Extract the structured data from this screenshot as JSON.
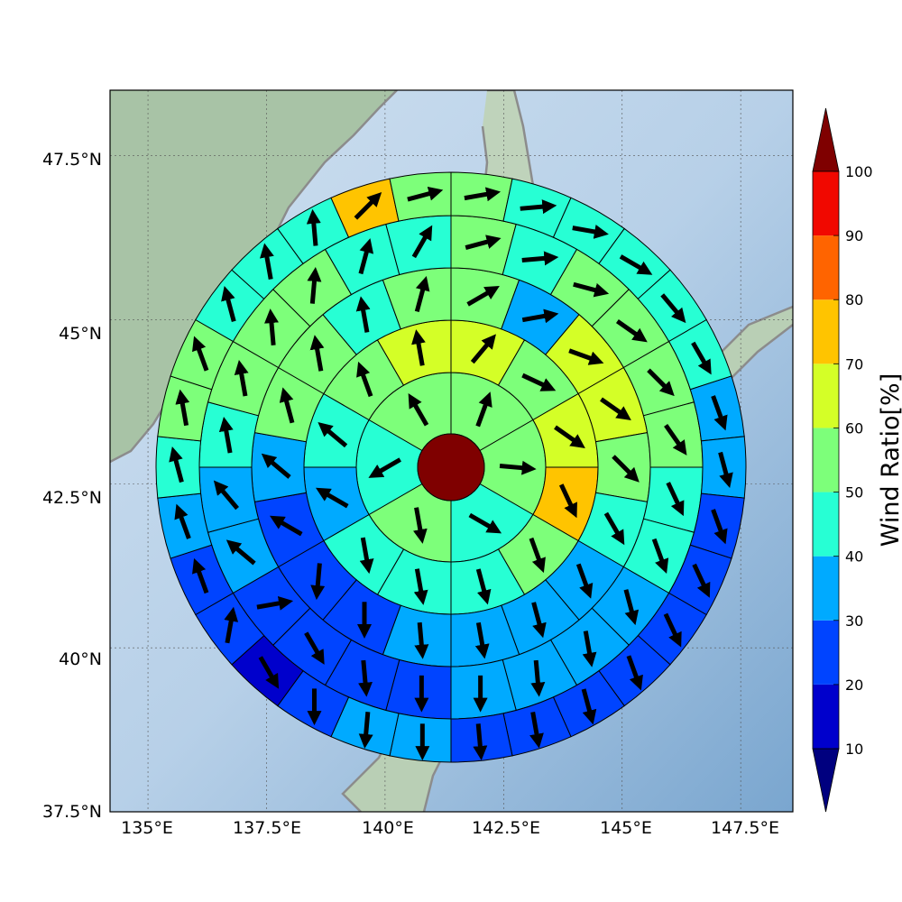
{
  "map": {
    "lon_ticks": [
      "135°E",
      "137.5°E",
      "140°E",
      "142.5°E",
      "145°E",
      "147.5°E"
    ],
    "lat_ticks": [
      "47.5°N",
      "45°N",
      "42.5°N",
      "40°N",
      "37.5°N"
    ],
    "center": {
      "lon": 141.4,
      "lat": 43.1
    },
    "extent": {
      "lon": [
        134.2,
        148.6
      ],
      "lat": [
        37.5,
        48.5
      ]
    },
    "colors": {
      "land": "#9fc0a4",
      "sea": "#aecbe6",
      "coast": "#8c8c8c",
      "center_disc": "#7f0000"
    },
    "rings": [
      {
        "sectors": 6,
        "ratio": [
          55,
          55,
          45,
          50,
          45,
          55
        ],
        "wind_dir": [
          20,
          95,
          120,
          170,
          240,
          330
        ]
      },
      {
        "sectors": 12,
        "ratio": [
          65,
          55,
          60,
          75,
          55,
          45,
          45,
          45,
          35,
          45,
          55,
          65
        ],
        "wind_dir": [
          40,
          115,
          125,
          155,
          160,
          165,
          170,
          170,
          300,
          310,
          340,
          350
        ]
      },
      {
        "sectors": 18,
        "ratio": [
          55,
          35,
          65,
          65,
          55,
          45,
          35,
          35,
          35,
          35,
          25,
          25,
          25,
          35,
          55,
          55,
          45,
          55
        ],
        "wind_dir": [
          60,
          80,
          110,
          125,
          135,
          150,
          160,
          165,
          170,
          175,
          180,
          185,
          300,
          310,
          345,
          350,
          350,
          15
        ]
      },
      {
        "sectors": 24,
        "ratio": [
          55,
          45,
          55,
          55,
          55,
          55,
          45,
          45,
          35,
          35,
          35,
          35,
          25,
          25,
          25,
          25,
          35,
          35,
          45,
          55,
          55,
          55,
          45,
          45
        ],
        "wind_dir": [
          75,
          85,
          105,
          125,
          135,
          145,
          155,
          160,
          165,
          170,
          175,
          180,
          180,
          175,
          150,
          80,
          310,
          320,
          350,
          350,
          355,
          5,
          15,
          30
        ]
      },
      {
        "sectors": 30,
        "ratio": [
          55,
          45,
          45,
          45,
          45,
          45,
          35,
          35,
          25,
          25,
          25,
          25,
          25,
          25,
          25,
          35,
          35,
          25,
          15,
          25,
          25,
          35,
          45,
          55,
          55,
          45,
          45,
          45,
          75,
          55
        ],
        "wind_dir": [
          80,
          85,
          100,
          120,
          140,
          150,
          160,
          165,
          160,
          155,
          155,
          160,
          165,
          170,
          175,
          180,
          185,
          180,
          150,
          10,
          340,
          340,
          345,
          350,
          340,
          345,
          350,
          355,
          45,
          75
        ]
      }
    ]
  },
  "colorbar": {
    "label": "Wind Ratio[%]",
    "ticks": [
      "10",
      "20",
      "30",
      "40",
      "50",
      "60",
      "70",
      "80",
      "90",
      "100"
    ],
    "range": [
      10,
      100
    ],
    "colors": [
      "#0000cc",
      "#0044ff",
      "#00aaff",
      "#27ffd4",
      "#7dff7a",
      "#d4ff27",
      "#ffc400",
      "#ff6400",
      "#f10800"
    ],
    "under_color": "#00007f",
    "over_color": "#7f0000"
  }
}
